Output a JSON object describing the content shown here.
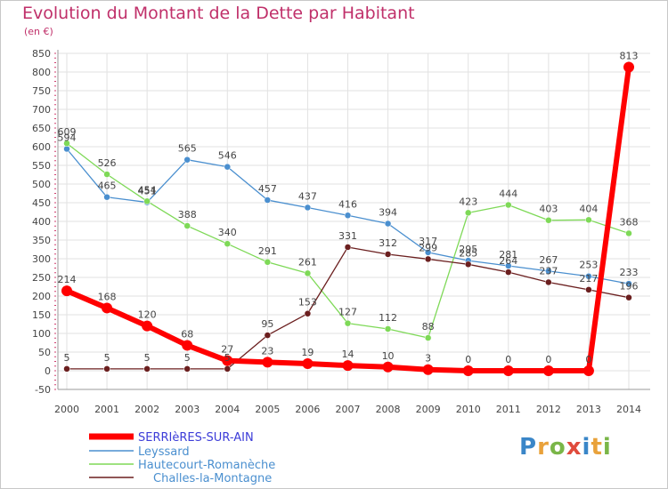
{
  "chart_data": {
    "type": "line",
    "title": "Evolution du Montant de la Dette par Habitant",
    "subtitle": "(en €)",
    "x": [
      "2000",
      "2001",
      "2002",
      "2003",
      "2004",
      "2005",
      "2006",
      "2007",
      "2008",
      "2009",
      "2010",
      "2011",
      "2012",
      "2013",
      "2014"
    ],
    "ylim": [
      -50,
      850
    ],
    "yticks": [
      -50,
      0,
      50,
      100,
      150,
      200,
      250,
      300,
      350,
      400,
      450,
      500,
      550,
      600,
      650,
      700,
      750,
      800,
      850
    ],
    "grid": true,
    "legend_position": "bottom-left",
    "series": [
      {
        "name": "SERRIèRES-SUR-AIN",
        "color": "#ff0000",
        "values": [
          214,
          168,
          120,
          68,
          27,
          23,
          19,
          14,
          10,
          3,
          0,
          0,
          0,
          0,
          813
        ]
      },
      {
        "name": "Leyssard",
        "color": "#4a8fcf",
        "values": [
          594,
          465,
          451,
          565,
          546,
          457,
          437,
          416,
          394,
          317,
          295,
          281,
          267,
          253,
          233
        ]
      },
      {
        "name": "Hautecourt-Romanèche",
        "color": "#7ed957",
        "values": [
          609,
          526,
          454,
          388,
          340,
          291,
          261,
          127,
          112,
          88,
          423,
          444,
          403,
          404,
          368
        ]
      },
      {
        "name": "Challes-la-Montagne",
        "color": "#6b1f1f",
        "values": [
          5,
          5,
          5,
          5,
          5,
          95,
          153,
          331,
          312,
          299,
          285,
          264,
          237,
          217,
          196
        ]
      }
    ]
  },
  "logo_text": "Proxiti"
}
